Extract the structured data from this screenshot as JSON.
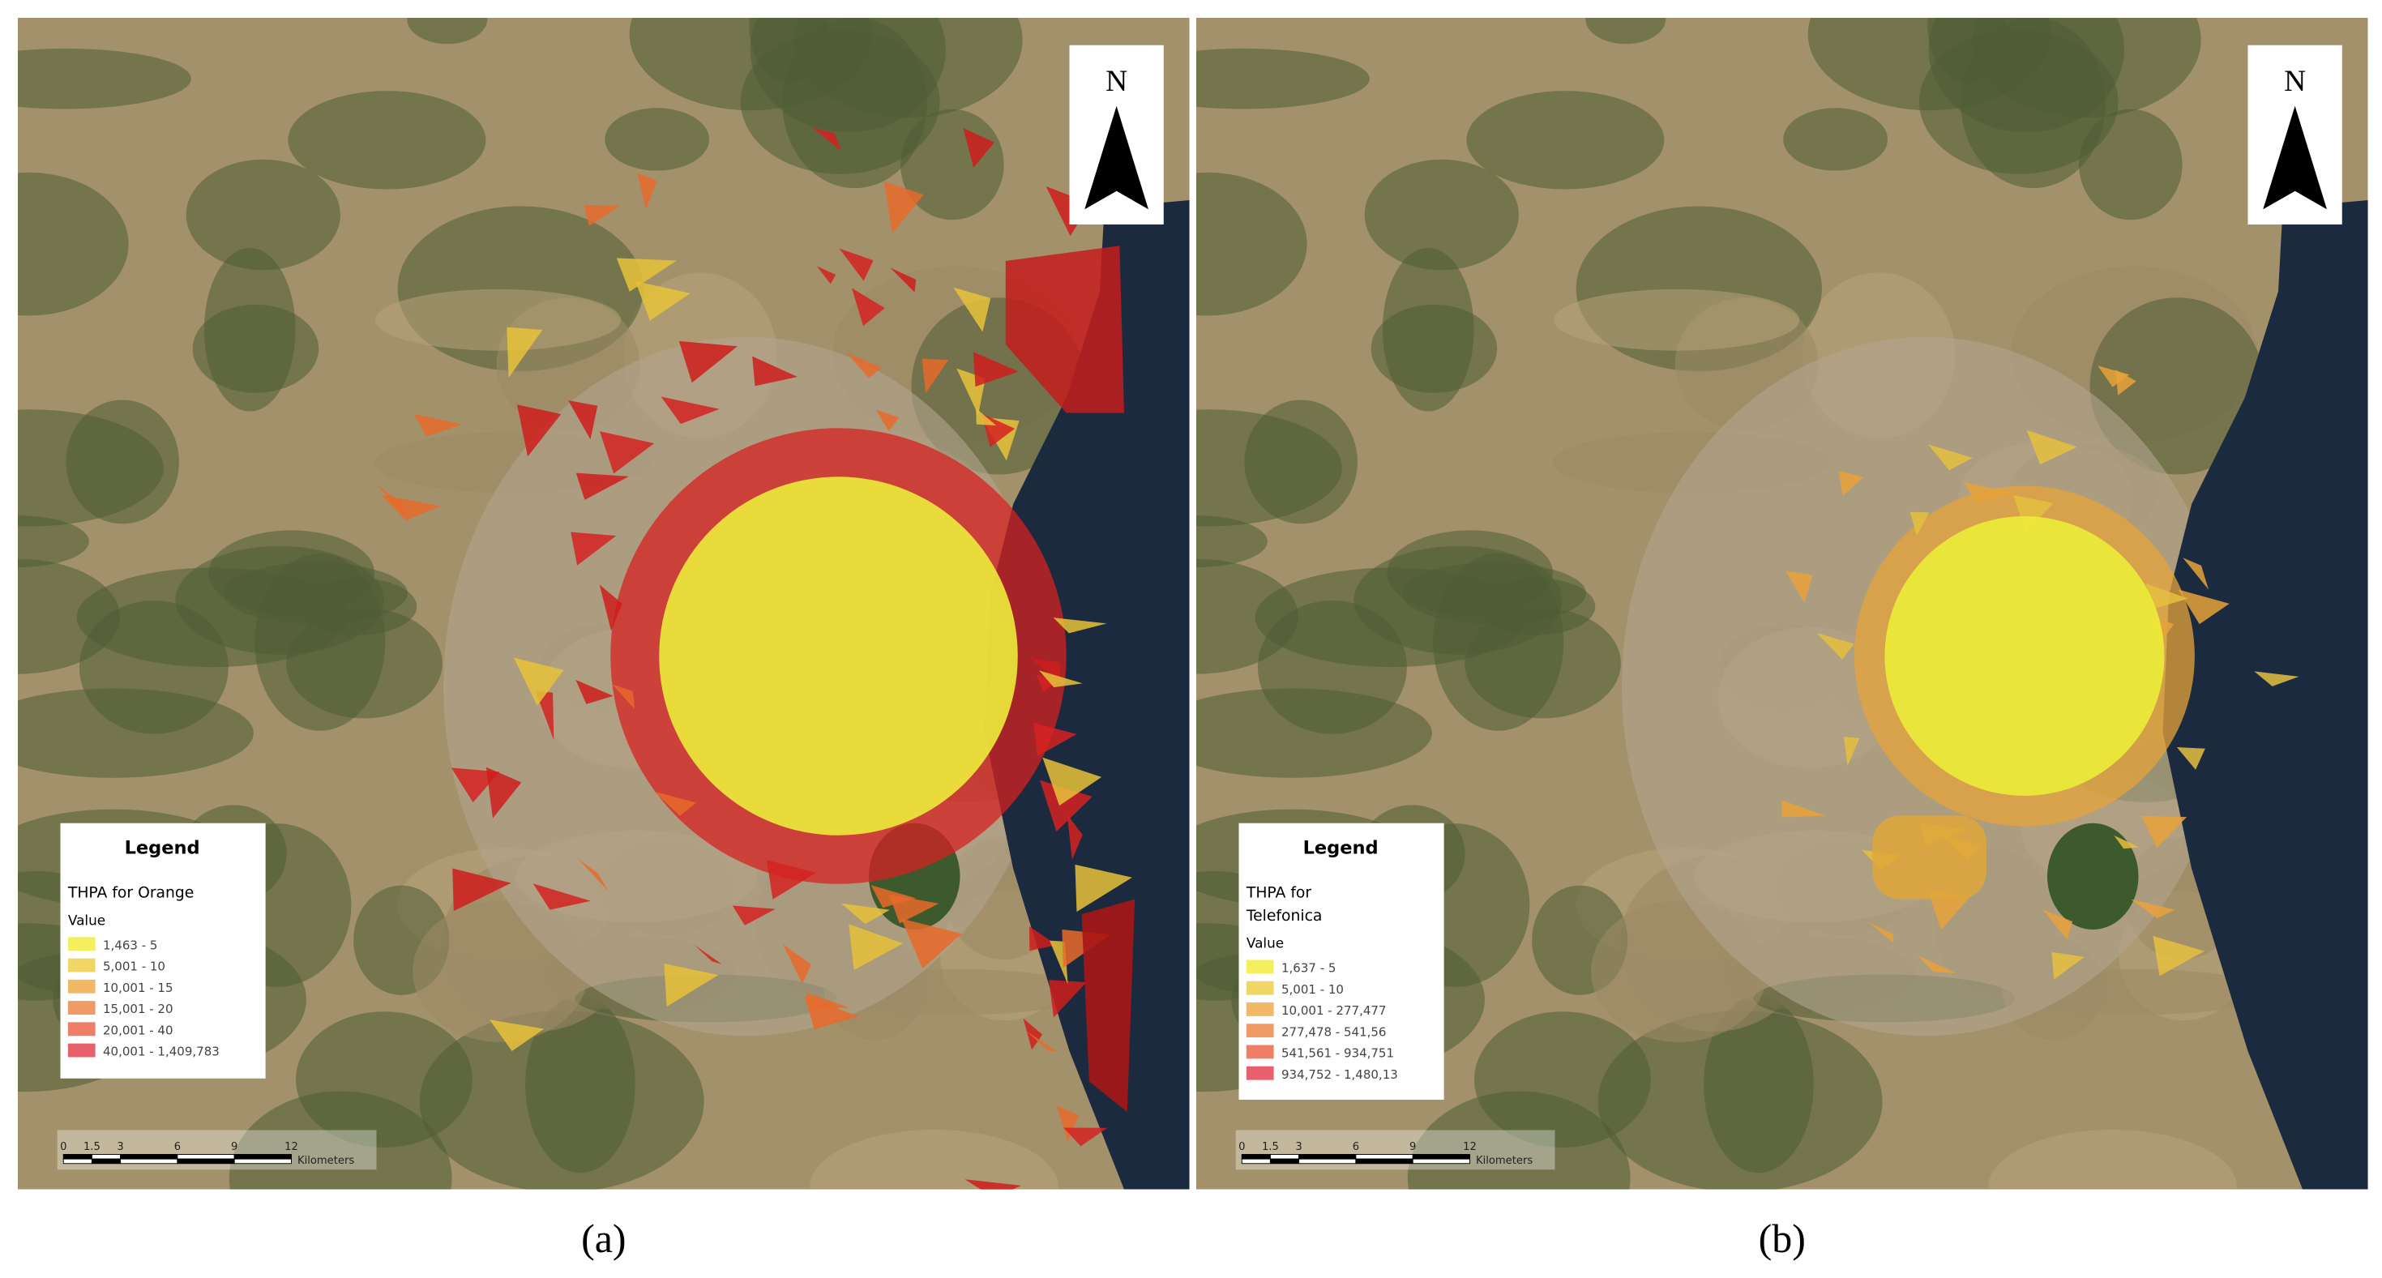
{
  "panels": [
    {
      "caption": "(a)",
      "north": "N",
      "legend": {
        "title": "Legend",
        "layer": [
          "THPA for Orange"
        ],
        "field": "Value",
        "classes": [
          {
            "label": "1,463 - 5",
            "color": "#f4ef5c"
          },
          {
            "label": "5,001 - 10",
            "color": "#efd665"
          },
          {
            "label": "10,001 - 15",
            "color": "#f1b966"
          },
          {
            "label": "15,001 - 20",
            "color": "#f09b66"
          },
          {
            "label": "20,001 - 40",
            "color": "#ee7f66"
          },
          {
            "label": "40,001 - 1,409,783",
            "color": "#e9606d"
          }
        ]
      },
      "scale": {
        "ticks": [
          "0",
          "1.5",
          "3",
          "6",
          "9",
          "12"
        ],
        "unit": "Kilometers"
      }
    },
    {
      "caption": "(b)",
      "north": "N",
      "legend": {
        "title": "Legend",
        "layer": [
          "THPA for",
          "Telefonica"
        ],
        "field": "Value",
        "classes": [
          {
            "label": "1,637 - 5",
            "color": "#f4ef5c"
          },
          {
            "label": "5,001 - 10",
            "color": "#efd665"
          },
          {
            "label": "10,001 - 277,477",
            "color": "#f1b966"
          },
          {
            "label": "277,478 - 541,56",
            "color": "#f09b66"
          },
          {
            "label": "541,561 - 934,751",
            "color": "#ee7f66"
          },
          {
            "label": "934,752 - 1,480,13",
            "color": "#e9606d"
          }
        ]
      },
      "scale": {
        "ticks": [
          "0",
          "1.5",
          "3",
          "6",
          "9",
          "12"
        ],
        "unit": "Kilometers"
      }
    }
  ]
}
